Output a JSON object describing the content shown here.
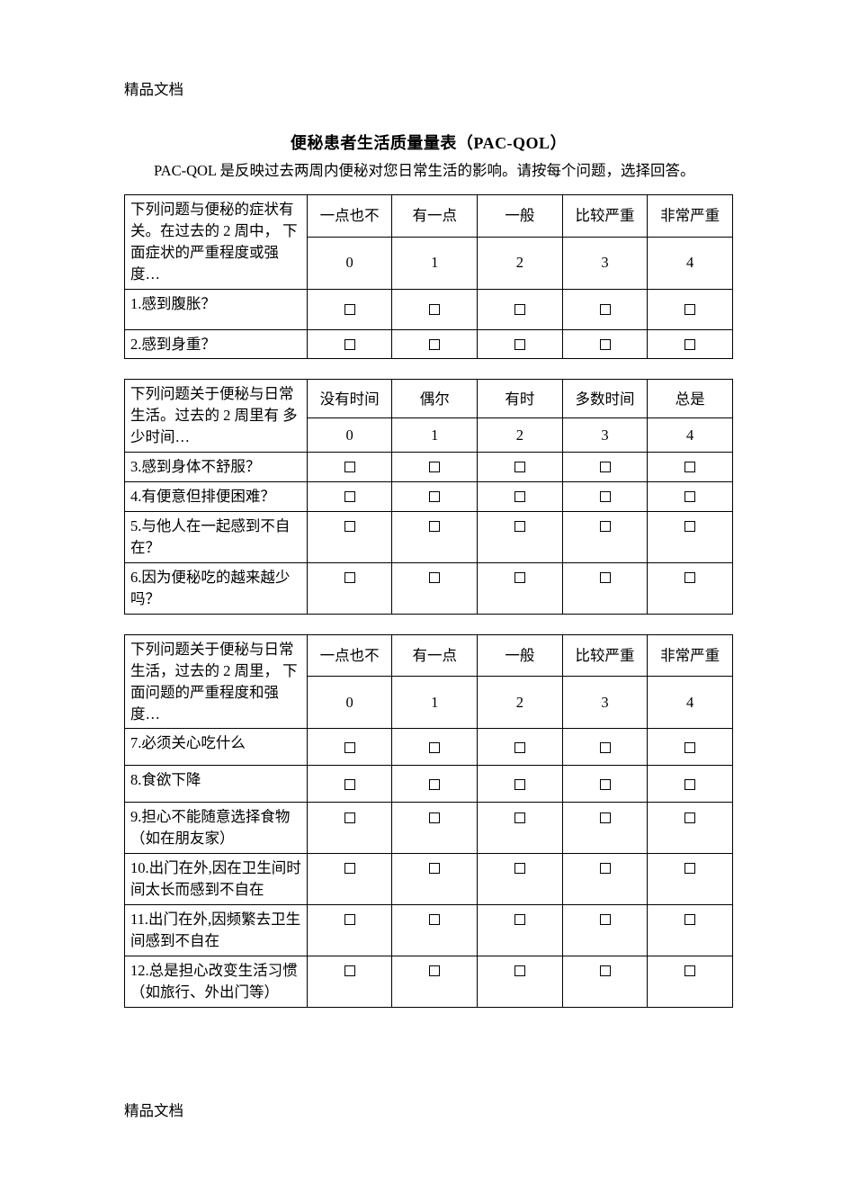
{
  "page": {
    "watermark": "精品文档",
    "title": "便秘患者生活质量量表（PAC-QOL）",
    "intro": "PAC-QOL 是反映过去两周内便秘对您日常生活的影响。请按每个问题，选择回答。"
  },
  "scale_numbers": [
    "0",
    "1",
    "2",
    "3",
    "4"
  ],
  "section1": {
    "prompt_l1": "下列问题与便秘的症状有关。在过去的 2 周中，",
    "prompt_l2": "下面症状的严重程度或强度…",
    "headers": [
      "一点也不",
      "有一点",
      "一般",
      "比较严重",
      "非常严重"
    ],
    "questions": [
      "1.感到腹胀？",
      "2.感到身重？"
    ]
  },
  "section2": {
    "prompt_l1": "下列问题关于便秘与日常生活。过去的 2 周里有",
    "prompt_l2": "多少时间…",
    "headers": [
      "没有时间",
      "偶尔",
      "有时",
      "多数时间",
      "总是"
    ],
    "questions": [
      "3.感到身体不舒服？",
      "4.有便意但排便困难？",
      "5.与他人在一起感到不自在？",
      "6.因为便秘吃的越来越少吗？"
    ]
  },
  "section3": {
    "prompt_l1": "下列问题关于便秘与日常生活，过去的 2 周里，",
    "prompt_l2": "下面问题的严重程度和强度…",
    "headers": [
      "一点也不",
      "有一点",
      "一般",
      "比较严重",
      "非常严重"
    ],
    "questions": [
      "7.必须关心吃什么",
      "8.食欲下降",
      "9.担心不能随意选择食物（如在朋友家）",
      "10.出门在外,因在卫生间时间太长而感到不自在",
      "11.出门在外,因频繁去卫生间感到不自在",
      "12.总是担心改变生活习惯（如旅行、外出门等）"
    ]
  }
}
